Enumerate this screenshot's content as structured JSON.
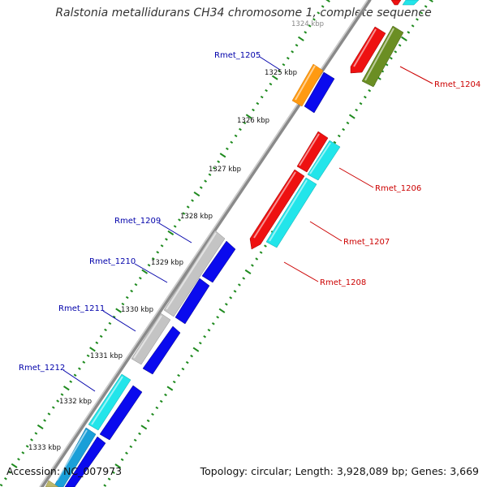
{
  "title": "Ralstonia metallidurans CH34 chromosome 1, complete sequence",
  "accession": "Accession: NC_007973",
  "summary": "Topology: circular; Length: 3,928,089 bp; Genes: 3,669",
  "colors": {
    "backbone": "#8a8a8a",
    "forward_label": "#cc0000",
    "reverse_label": "#0000aa",
    "tick": "#1e8a1e",
    "red": "#ee1111",
    "olive": "#6b8e23",
    "cyan": "#22e5ea",
    "blue": "#0a0aee",
    "orange": "#ff9a11",
    "grey": "#c4c4c4",
    "steelblue": "#1a9fd8",
    "tan": "#bdb76b"
  },
  "ruler": [
    {
      "label": "1324 kbp"
    },
    {
      "label": "1325 kbp"
    },
    {
      "label": "1326 kbp"
    },
    {
      "label": "1327 kbp"
    },
    {
      "label": "1328 kbp"
    },
    {
      "label": "1329 kbp"
    },
    {
      "label": "1330 kbp"
    },
    {
      "label": "1331 kbp"
    },
    {
      "label": "1332 kbp"
    },
    {
      "label": "1333 kbp"
    }
  ],
  "gene_labels": {
    "forward": [
      "Rmet_1204",
      "Rmet_1206",
      "Rmet_1207",
      "Rmet_1208"
    ],
    "reverse": [
      "Rmet_1205",
      "Rmet_1209",
      "Rmet_1210",
      "Rmet_1211",
      "Rmet_1212"
    ]
  }
}
